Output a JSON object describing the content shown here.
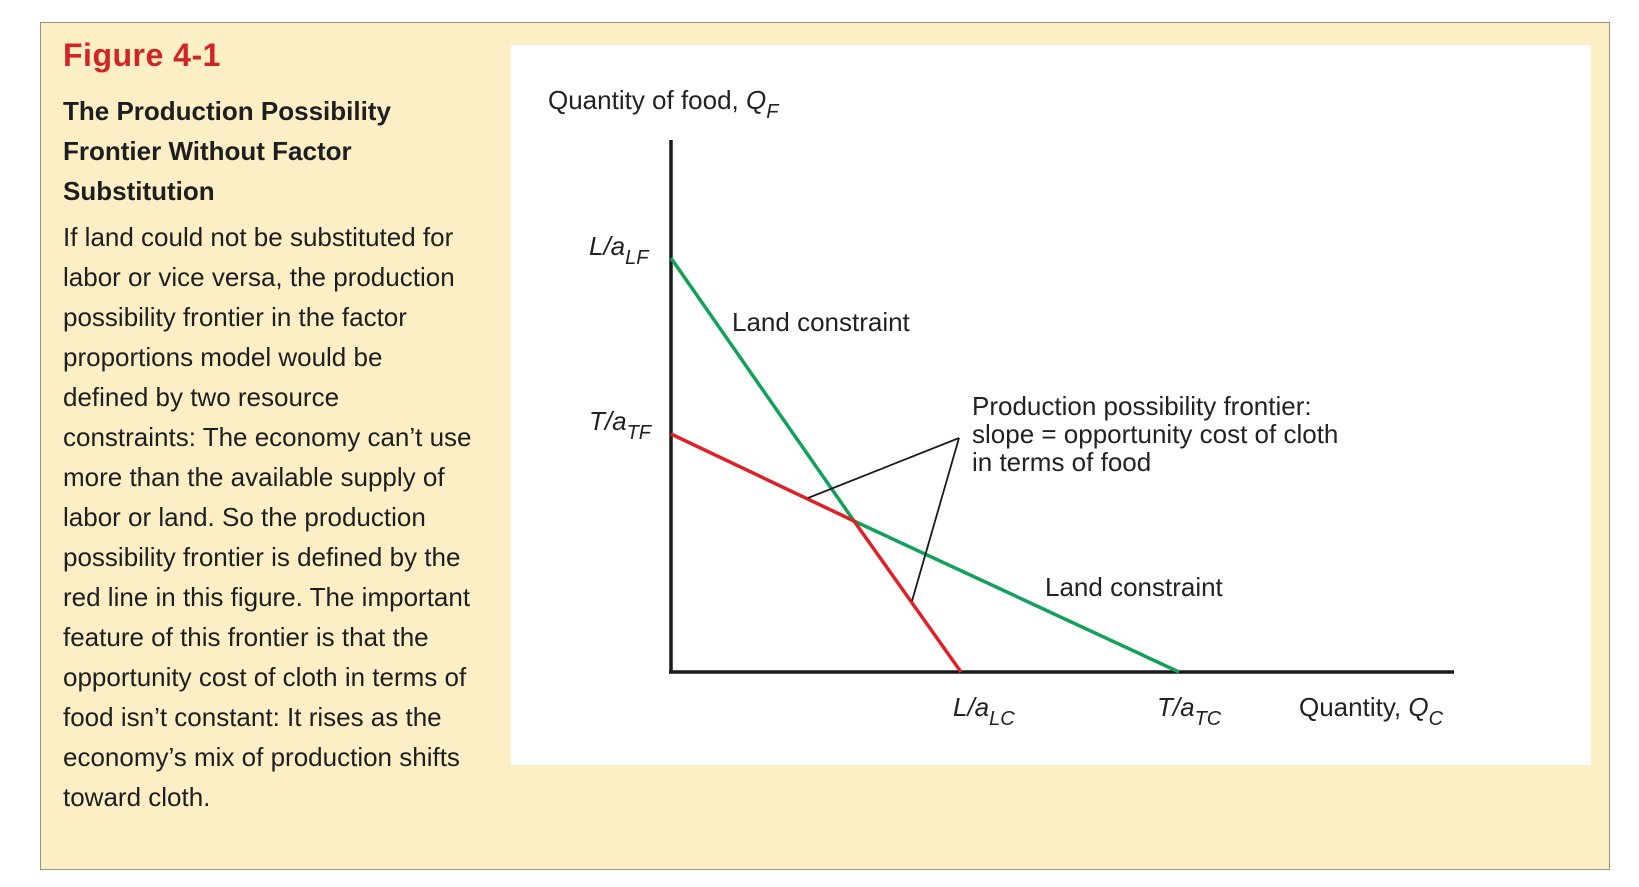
{
  "figure": {
    "label": "Figure 4-1",
    "title": "The Production Possibility Frontier Without Factor Substitution",
    "caption": "If land could not be substituted for labor or vice versa, the production possibility frontier in the factor proportions model would be defined by two resource constraints: The economy can’t use more than the available supply of labor or land. So the production possibility frontier is defined by the red line in this figure. The important feature of this frontier is that the opportunity cost of cloth in terms of food isn’t constant: It rises as the economy’s mix of production shifts toward cloth."
  },
  "diagram": {
    "y_axis_label": "Quantity of food, ",
    "y_axis_var": "Q",
    "y_axis_sub": "F",
    "x_axis_label": "Quantity, ",
    "x_axis_var": "Q",
    "x_axis_sub": "C",
    "tick_l_alf": "L/a",
    "tick_l_alf_sub": "LF",
    "tick_t_atf": "T/a",
    "tick_t_atf_sub": "TF",
    "tick_l_alc": "L/a",
    "tick_l_alc_sub": "LC",
    "tick_t_atc": "T/a",
    "tick_t_atc_sub": "TC",
    "label_constraint_upper": "Land constraint",
    "label_constraint_lower": "Land constraint",
    "ppf_annotation_line1": "Production possibility frontier:",
    "ppf_annotation_line2": "slope = opportunity cost of cloth",
    "ppf_annotation_line3": "in terms of food",
    "colors": {
      "steep_constraint": "#12a05a",
      "flat_constraint": "#12a05a",
      "frontier": "#e02028",
      "axis": "#1a1a1a",
      "panel": "#fcefc6"
    }
  }
}
